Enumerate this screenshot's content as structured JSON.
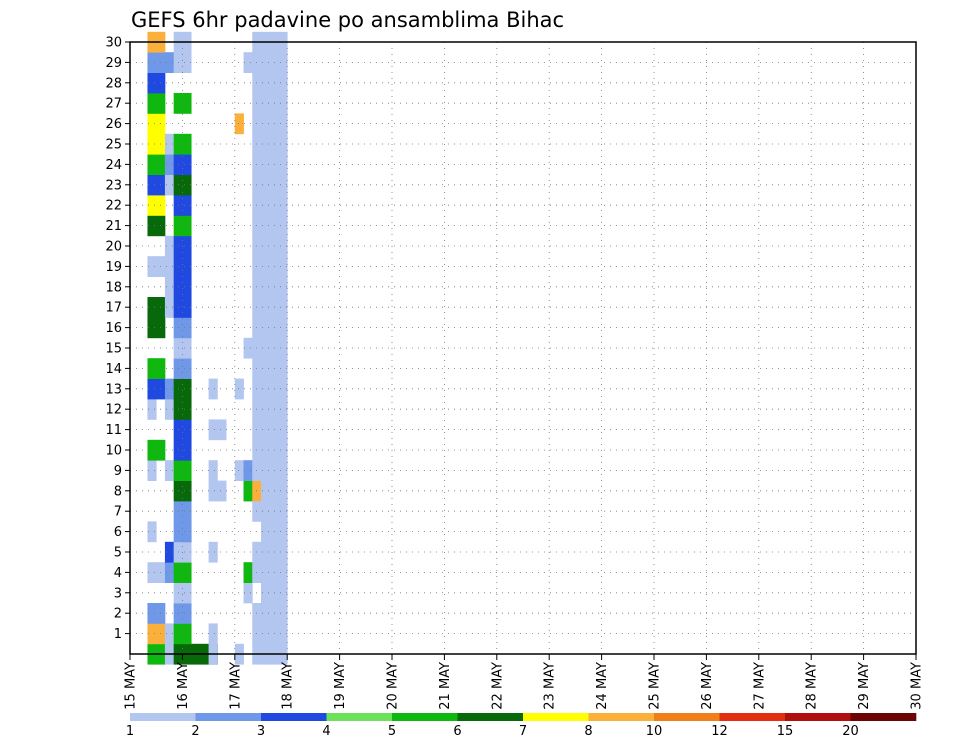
{
  "chart_data": {
    "type": "heatmap",
    "title": "GEFS 6hr padavine po ansamblima Bihac",
    "xlabel": "",
    "ylabel": "",
    "x_ticks": [
      "15 MAY",
      "16 MAY",
      "17 MAY",
      "18 MAY",
      "19 MAY",
      "20 MAY",
      "21 MAY",
      "22 MAY",
      "23 MAY",
      "24 MAY",
      "25 MAY",
      "26 MAY",
      "27 MAY",
      "28 MAY",
      "29 MAY",
      "30 MAY"
    ],
    "x_range": [
      "15 MAY 00Z",
      "30 MAY 00Z"
    ],
    "y_ticks": [
      1,
      2,
      3,
      4,
      5,
      6,
      7,
      8,
      9,
      10,
      11,
      12,
      13,
      14,
      15,
      16,
      17,
      18,
      19,
      20,
      21,
      22,
      23,
      24,
      25,
      26,
      27,
      28,
      29,
      30
    ],
    "y_range": [
      0,
      30
    ],
    "grid": true,
    "colorbar": {
      "placement": "bottom",
      "labels": [
        "1",
        "2",
        "3",
        "4",
        "5",
        "6",
        "7",
        "8",
        "10",
        "12",
        "15",
        "20"
      ],
      "colors": [
        "#b3c6f0",
        "#6f98e8",
        "#1f49e0",
        "#6ce25a",
        "#0fb80f",
        "#07690a",
        "#ffff00",
        "#fbb03b",
        "#f07e19",
        "#e0300f",
        "#b0100d",
        "#6c0404"
      ]
    },
    "columns": "each 6-hour step from 15 MAY 00Z (6 steps per tick label)",
    "rows": "ensemble members 0-30 (row 0 unlabeled)",
    "cells": [
      [
        2,
        0,
        2,
        5,
        8
      ],
      [
        2,
        1,
        2,
        8,
        9
      ],
      [
        2,
        2,
        2,
        2,
        3
      ],
      [
        2,
        4,
        2,
        1,
        1
      ],
      [
        2,
        6,
        1,
        1,
        0
      ],
      [
        2,
        9,
        1,
        1,
        0
      ],
      [
        2,
        10,
        2,
        5,
        6
      ],
      [
        2,
        12,
        1,
        1,
        0
      ],
      [
        2,
        13,
        2,
        3,
        5
      ],
      [
        2,
        14,
        2,
        5,
        0
      ],
      [
        2,
        16,
        2,
        6,
        6
      ],
      [
        2,
        17,
        2,
        6,
        6
      ],
      [
        2,
        19,
        2,
        1,
        1
      ],
      [
        2,
        21,
        2,
        6,
        6
      ],
      [
        2,
        22,
        2,
        7,
        7
      ],
      [
        2,
        23,
        2,
        3,
        5
      ],
      [
        2,
        24,
        2,
        5,
        7
      ],
      [
        2,
        25,
        2,
        7,
        7
      ],
      [
        2,
        26,
        2,
        7,
        7
      ],
      [
        2,
        27,
        2,
        5,
        0
      ],
      [
        2,
        28,
        2,
        3,
        3
      ],
      [
        2,
        29,
        2,
        2,
        0
      ],
      [
        2,
        30,
        2,
        8,
        0
      ],
      [
        4,
        0,
        1,
        1,
        0
      ],
      [
        4,
        1,
        1,
        1,
        0
      ],
      [
        4,
        4,
        1,
        2,
        0
      ],
      [
        4,
        5,
        1,
        3,
        0
      ],
      [
        4,
        9,
        1,
        1,
        0
      ],
      [
        4,
        12,
        1,
        1,
        0
      ],
      [
        4,
        13,
        1,
        2,
        0
      ],
      [
        4,
        17,
        1,
        1,
        0
      ],
      [
        4,
        18,
        1,
        1,
        0
      ],
      [
        4,
        19,
        1,
        1,
        0
      ],
      [
        4,
        20,
        1,
        1,
        0
      ],
      [
        4,
        23,
        1,
        1,
        0
      ],
      [
        4,
        24,
        1,
        2,
        0
      ],
      [
        4,
        25,
        1,
        1,
        0
      ],
      [
        4,
        29,
        1,
        2,
        0
      ],
      [
        5,
        0,
        5,
        6,
        6
      ],
      [
        5,
        1,
        2,
        5,
        3
      ],
      [
        5,
        2,
        2,
        2,
        0
      ],
      [
        5,
        3,
        2,
        1,
        1
      ],
      [
        5,
        4,
        2,
        5,
        3
      ],
      [
        5,
        5,
        2,
        1,
        1
      ],
      [
        5,
        6,
        2,
        2,
        0
      ],
      [
        5,
        7,
        2,
        2,
        6
      ],
      [
        5,
        8,
        2,
        6,
        11
      ],
      [
        5,
        9,
        2,
        5,
        2
      ],
      [
        5,
        10,
        2,
        3,
        2
      ],
      [
        5,
        11,
        2,
        3,
        2
      ],
      [
        5,
        12,
        2,
        6,
        4
      ],
      [
        5,
        13,
        2,
        6,
        6
      ],
      [
        5,
        14,
        2,
        2,
        3
      ],
      [
        5,
        15,
        2,
        1,
        0
      ],
      [
        5,
        16,
        2,
        2,
        3
      ],
      [
        5,
        17,
        2,
        3,
        3
      ],
      [
        5,
        18,
        2,
        3,
        3
      ],
      [
        5,
        19,
        2,
        3,
        5
      ],
      [
        5,
        20,
        2,
        3,
        6
      ],
      [
        5,
        21,
        2,
        5,
        1
      ],
      [
        5,
        22,
        2,
        3,
        1
      ],
      [
        5,
        23,
        2,
        6,
        2
      ],
      [
        5,
        24,
        2,
        3,
        3
      ],
      [
        5,
        25,
        2,
        5,
        6
      ],
      [
        5,
        27,
        2,
        5,
        1
      ],
      [
        5,
        29,
        2,
        1,
        4
      ],
      [
        5,
        30,
        2,
        1,
        2
      ],
      [
        6,
        6,
        1,
        2,
        0
      ],
      [
        9,
        0,
        1,
        1,
        0
      ],
      [
        9,
        1,
        1,
        1,
        0
      ],
      [
        9,
        5,
        1,
        1,
        0
      ],
      [
        9,
        8,
        2,
        1,
        1
      ],
      [
        9,
        9,
        1,
        1,
        0
      ],
      [
        9,
        11,
        2,
        1,
        1
      ],
      [
        9,
        13,
        1,
        1,
        0
      ],
      [
        12,
        0,
        1,
        1,
        0
      ],
      [
        12,
        9,
        1,
        1,
        0
      ],
      [
        12,
        13,
        1,
        1,
        0
      ],
      [
        12,
        26,
        1,
        8,
        0
      ],
      [
        13,
        3,
        1,
        1,
        0
      ],
      [
        13,
        4,
        1,
        5,
        0
      ],
      [
        13,
        8,
        1,
        5,
        0
      ],
      [
        13,
        9,
        1,
        2,
        0
      ],
      [
        13,
        15,
        1,
        1,
        0
      ],
      [
        13,
        29,
        1,
        1,
        0
      ],
      [
        14,
        0,
        1,
        1,
        0
      ],
      [
        14,
        1,
        1,
        1,
        0
      ],
      [
        14,
        2,
        1,
        1,
        0
      ],
      [
        14,
        4,
        1,
        1,
        0
      ],
      [
        14,
        5,
        1,
        1,
        0
      ],
      [
        14,
        7,
        1,
        1,
        0
      ],
      [
        14,
        8,
        1,
        8,
        0
      ],
      [
        14,
        9,
        1,
        1,
        0
      ],
      [
        14,
        10,
        1,
        1,
        0
      ],
      [
        14,
        11,
        1,
        1,
        0
      ],
      [
        14,
        12,
        1,
        1,
        0
      ],
      [
        14,
        13,
        1,
        1,
        0
      ],
      [
        14,
        14,
        1,
        1,
        0
      ],
      [
        14,
        15,
        1,
        1,
        0
      ],
      [
        14,
        16,
        1,
        1,
        0
      ],
      [
        14,
        17,
        1,
        1,
        0
      ],
      [
        14,
        18,
        1,
        1,
        0
      ],
      [
        14,
        19,
        1,
        1,
        0
      ],
      [
        14,
        20,
        1,
        1,
        0
      ],
      [
        14,
        21,
        1,
        1,
        0
      ],
      [
        14,
        22,
        1,
        1,
        0
      ],
      [
        14,
        23,
        1,
        1,
        0
      ],
      [
        14,
        24,
        1,
        1,
        0
      ],
      [
        14,
        25,
        1,
        1,
        0
      ],
      [
        14,
        26,
        1,
        1,
        0
      ],
      [
        14,
        27,
        1,
        1,
        0
      ],
      [
        14,
        28,
        1,
        1,
        0
      ],
      [
        14,
        29,
        1,
        1,
        0
      ],
      [
        14,
        30,
        1,
        1,
        0
      ],
      [
        15,
        0,
        1,
        1,
        0
      ],
      [
        15,
        1,
        1,
        1,
        0
      ],
      [
        15,
        2,
        1,
        1,
        0
      ],
      [
        15,
        3,
        1,
        1,
        0
      ],
      [
        15,
        4,
        1,
        1,
        0
      ],
      [
        15,
        5,
        1,
        1,
        0
      ],
      [
        15,
        6,
        1,
        1,
        0
      ],
      [
        15,
        7,
        1,
        1,
        0
      ],
      [
        15,
        8,
        1,
        1,
        0
      ],
      [
        15,
        9,
        1,
        1,
        0
      ],
      [
        15,
        10,
        1,
        1,
        0
      ],
      [
        15,
        11,
        1,
        1,
        0
      ],
      [
        15,
        12,
        1,
        1,
        0
      ],
      [
        15,
        13,
        1,
        1,
        0
      ],
      [
        15,
        14,
        1,
        1,
        0
      ],
      [
        15,
        15,
        1,
        1,
        0
      ],
      [
        15,
        16,
        1,
        1,
        0
      ],
      [
        15,
        17,
        1,
        1,
        0
      ],
      [
        15,
        18,
        1,
        1,
        0
      ],
      [
        15,
        19,
        1,
        1,
        0
      ],
      [
        15,
        20,
        1,
        1,
        0
      ],
      [
        15,
        21,
        1,
        1,
        0
      ],
      [
        15,
        22,
        1,
        1,
        0
      ],
      [
        15,
        23,
        1,
        1,
        0
      ],
      [
        15,
        24,
        1,
        1,
        0
      ],
      [
        15,
        25,
        1,
        1,
        0
      ],
      [
        15,
        26,
        1,
        1,
        0
      ],
      [
        15,
        27,
        1,
        1,
        0
      ],
      [
        15,
        28,
        1,
        1,
        0
      ],
      [
        15,
        29,
        1,
        1,
        0
      ],
      [
        15,
        30,
        1,
        1,
        0
      ],
      [
        16,
        0,
        1,
        1,
        0
      ],
      [
        16,
        1,
        1,
        1,
        0
      ],
      [
        16,
        2,
        1,
        1,
        0
      ],
      [
        16,
        3,
        1,
        1,
        0
      ],
      [
        16,
        4,
        1,
        1,
        0
      ],
      [
        16,
        5,
        1,
        1,
        0
      ],
      [
        16,
        6,
        1,
        1,
        0
      ],
      [
        16,
        7,
        1,
        1,
        0
      ],
      [
        16,
        8,
        1,
        1,
        0
      ],
      [
        16,
        9,
        1,
        1,
        0
      ],
      [
        16,
        10,
        1,
        1,
        0
      ],
      [
        16,
        11,
        1,
        1,
        0
      ],
      [
        16,
        12,
        1,
        1,
        0
      ],
      [
        16,
        13,
        1,
        1,
        0
      ],
      [
        16,
        14,
        1,
        1,
        0
      ],
      [
        16,
        15,
        1,
        1,
        0
      ],
      [
        16,
        16,
        1,
        1,
        0
      ],
      [
        16,
        17,
        1,
        1,
        0
      ],
      [
        16,
        18,
        1,
        1,
        0
      ],
      [
        16,
        19,
        1,
        1,
        0
      ],
      [
        16,
        20,
        1,
        1,
        0
      ],
      [
        16,
        21,
        1,
        1,
        0
      ],
      [
        16,
        22,
        1,
        1,
        0
      ],
      [
        16,
        23,
        1,
        1,
        0
      ],
      [
        16,
        24,
        1,
        1,
        0
      ],
      [
        16,
        25,
        1,
        1,
        0
      ],
      [
        16,
        26,
        1,
        1,
        0
      ],
      [
        16,
        27,
        1,
        1,
        0
      ],
      [
        16,
        28,
        1,
        1,
        0
      ],
      [
        16,
        29,
        1,
        1,
        0
      ],
      [
        16,
        30,
        1,
        1,
        0
      ],
      [
        17,
        0,
        1,
        1,
        0
      ],
      [
        17,
        1,
        1,
        1,
        0
      ],
      [
        17,
        2,
        1,
        1,
        0
      ],
      [
        17,
        3,
        1,
        1,
        0
      ],
      [
        17,
        4,
        1,
        1,
        0
      ],
      [
        17,
        5,
        1,
        1,
        0
      ],
      [
        17,
        6,
        1,
        1,
        0
      ],
      [
        17,
        7,
        1,
        1,
        0
      ],
      [
        17,
        8,
        1,
        1,
        0
      ],
      [
        17,
        9,
        1,
        1,
        0
      ],
      [
        17,
        10,
        1,
        1,
        0
      ],
      [
        17,
        11,
        1,
        1,
        0
      ],
      [
        17,
        12,
        1,
        1,
        0
      ],
      [
        17,
        13,
        1,
        1,
        0
      ],
      [
        17,
        14,
        1,
        1,
        0
      ],
      [
        17,
        15,
        1,
        1,
        0
      ],
      [
        17,
        16,
        1,
        1,
        0
      ],
      [
        17,
        17,
        1,
        1,
        0
      ],
      [
        17,
        18,
        1,
        1,
        0
      ],
      [
        17,
        19,
        1,
        1,
        0
      ],
      [
        17,
        20,
        1,
        1,
        0
      ],
      [
        17,
        21,
        1,
        1,
        0
      ],
      [
        17,
        22,
        1,
        1,
        0
      ],
      [
        17,
        23,
        1,
        1,
        0
      ],
      [
        17,
        24,
        1,
        1,
        0
      ],
      [
        17,
        25,
        1,
        1,
        0
      ],
      [
        17,
        26,
        1,
        1,
        0
      ],
      [
        17,
        27,
        1,
        1,
        0
      ],
      [
        17,
        28,
        1,
        1,
        0
      ],
      [
        17,
        29,
        1,
        1,
        0
      ],
      [
        17,
        30,
        1,
        1,
        0
      ]
    ]
  }
}
